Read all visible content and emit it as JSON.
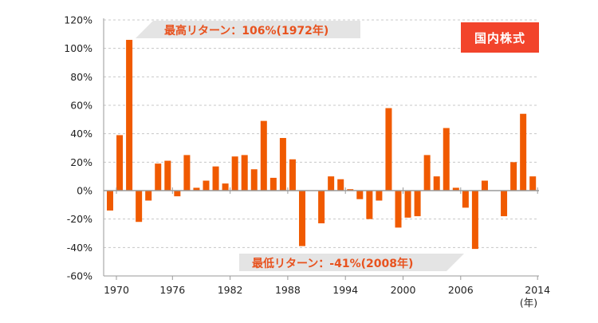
{
  "badge": "国内株式",
  "annotations": {
    "max": "最高リターン：106%(1972年)",
    "min": "最低リターン：-41%(2008年)"
  },
  "colors": {
    "bar": "#f05a00",
    "badge_bg": "#f2442b",
    "callout_text": "#e8521e",
    "callout_bg": "#e4e4e4"
  },
  "chart_data": {
    "type": "bar",
    "title": "",
    "xlabel": "(年)",
    "ylabel": "",
    "ylim": [
      -60,
      120
    ],
    "yticks": [
      -60,
      -40,
      -20,
      0,
      20,
      40,
      60,
      80,
      100,
      120
    ],
    "ytick_labels": [
      "-60%",
      "-40%",
      "-20%",
      "0%",
      "20%",
      "40%",
      "60%",
      "80%",
      "100%",
      "120%"
    ],
    "xtick_labels": [
      "1970",
      "1976",
      "1982",
      "1988",
      "1994",
      "2000",
      "2006",
      "2014"
    ],
    "grid": true,
    "categories": [
      1970,
      1971,
      1972,
      1973,
      1974,
      1975,
      1976,
      1977,
      1978,
      1979,
      1980,
      1981,
      1982,
      1983,
      1984,
      1985,
      1986,
      1987,
      1988,
      1989,
      1990,
      1991,
      1992,
      1993,
      1994,
      1995,
      1996,
      1997,
      1998,
      1999,
      2000,
      2001,
      2002,
      2003,
      2004,
      2005,
      2006,
      2007,
      2008,
      2009,
      2010,
      2011,
      2012,
      2013,
      2014
    ],
    "values": [
      -14,
      39,
      106,
      -22,
      -7,
      19,
      21,
      -4,
      25,
      2,
      7,
      17,
      5,
      24,
      25,
      15,
      49,
      9,
      37,
      22,
      -39,
      0,
      -23,
      10,
      8,
      1,
      -6,
      -20,
      -7,
      58,
      -26,
      -19,
      -18,
      25,
      10,
      44,
      2,
      -12,
      -41,
      7,
      0,
      -18,
      20,
      54,
      10
    ]
  }
}
